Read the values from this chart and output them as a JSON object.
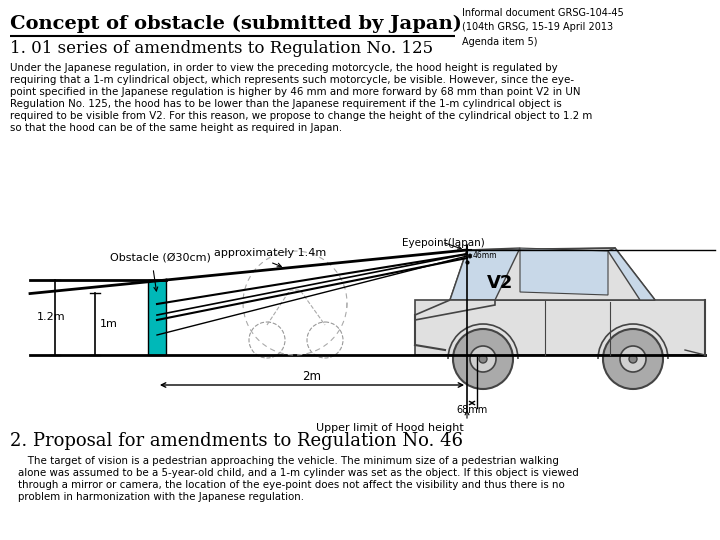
{
  "title": "Concept of obstacle (submitted by Japan)",
  "info_text": "Informal document GRSG-104-45\n(104th GRSG, 15-19 April 2013\nAgenda item 5)",
  "section1": "1. 01 series of amendments to Regulation No. 125",
  "body1_lines": [
    "Under the Japanese regulation, in order to view the preceding motorcycle, the hood height is regulated by",
    "requiring that a 1-m cylindrical object, which represents such motorcycle, be visible. However, since the eye-",
    "point specified in the Japanese regulation is higher by 46 mm and more forward by 68 mm than point V2 in UN",
    "Regulation No. 125, the hood has to be lower than the Japanese requirement if the 1-m cylindrical object is",
    "required to be visible from V2. For this reason, we propose to change the height of the cylindrical object to 1.2 m",
    "so that the hood can be of the same height as required in Japan."
  ],
  "section2": "2. Proposal for amendments to Regulation No. 46",
  "body2_lines": [
    "   The target of vision is a pedestrian approaching the vehicle. The minimum size of a pedestrian walking",
    "alone was assumed to be a 5-year-old child, and a 1-m cylinder was set as the object. If this object is viewed",
    "through a mirror or camera, the location of the eye-point does not affect the visibility and thus there is no",
    "problem in harmonization with the Japanese regulation."
  ],
  "diagram_caption": "Upper limit of Hood height",
  "label_obstacle": "Obstacle (Ø30cm)",
  "label_approx": "approximately 1.4m",
  "label_eyepoint": "Eyepoint(Japan)",
  "label_v2": "V2",
  "label_1m": "1m",
  "label_1_2m": "1.2m",
  "label_2m": "2m",
  "label_68mm": "68mm",
  "label_46mm": "46mm",
  "bg_color": "#ffffff",
  "teal_color": "#00b8b8",
  "black": "#000000",
  "gray": "#888888",
  "car_fill": "#e0e0e0",
  "car_stroke": "#444444"
}
